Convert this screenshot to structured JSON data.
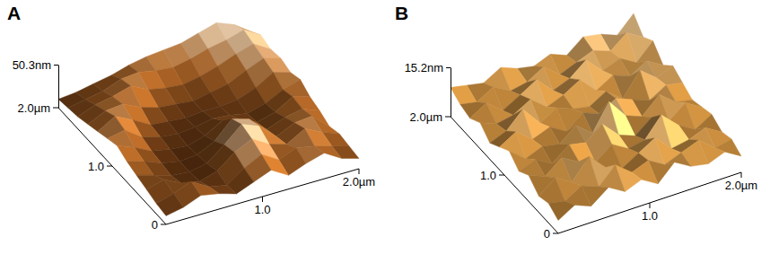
{
  "chart_data": [
    {
      "type": "surface",
      "title": "A",
      "x": [
        0,
        0.18,
        0.36,
        0.55,
        0.73,
        0.91,
        1.09,
        1.27,
        1.45,
        1.64,
        1.82,
        2
      ],
      "y": [
        0,
        0.18,
        0.36,
        0.55,
        0.73,
        0.91,
        1.09,
        1.27,
        1.45,
        1.64,
        1.82,
        2
      ],
      "z": [
        [
          10,
          14,
          22,
          18,
          12,
          20,
          28,
          16,
          24,
          30,
          18,
          12
        ],
        [
          12,
          18,
          26,
          14,
          10,
          24,
          34,
          22,
          30,
          26,
          20,
          14
        ],
        [
          16,
          22,
          12,
          8,
          14,
          30,
          40,
          28,
          22,
          34,
          24,
          16
        ],
        [
          20,
          14,
          8,
          6,
          10,
          26,
          44,
          36,
          18,
          28,
          30,
          12
        ],
        [
          24,
          18,
          10,
          6,
          8,
          18,
          38,
          32,
          14,
          22,
          26,
          18
        ],
        [
          30,
          22,
          12,
          8,
          6,
          12,
          24,
          20,
          10,
          16,
          28,
          22
        ],
        [
          26,
          30,
          16,
          10,
          8,
          10,
          14,
          12,
          8,
          14,
          24,
          30
        ],
        [
          22,
          34,
          24,
          12,
          10,
          8,
          10,
          10,
          12,
          20,
          32,
          26
        ],
        [
          18,
          28,
          30,
          20,
          14,
          12,
          10,
          14,
          18,
          28,
          36,
          30
        ],
        [
          14,
          22,
          26,
          32,
          22,
          18,
          16,
          20,
          26,
          34,
          40,
          28
        ],
        [
          12,
          16,
          20,
          28,
          30,
          26,
          24,
          28,
          34,
          38,
          44,
          32
        ],
        [
          10,
          12,
          16,
          20,
          26,
          30,
          32,
          34,
          40,
          46,
          38,
          24
        ]
      ],
      "xlim": [
        0,
        2
      ],
      "ylim": [
        0,
        2
      ],
      "zlim": [
        0,
        50.3
      ],
      "xticks": [
        {
          "value": 1,
          "label": "1.0"
        },
        {
          "value": 2,
          "label": "2.0µm"
        }
      ],
      "yticks": [
        0,
        {
          "value": 1,
          "label": "1.0"
        },
        {
          "value": 2,
          "label": "2.0µm"
        }
      ],
      "zticks": [
        {
          "value": 50.3,
          "label": "50.3nm"
        }
      ]
    },
    {
      "type": "surface",
      "title": "B",
      "x": [
        0,
        0.18,
        0.36,
        0.55,
        0.73,
        0.91,
        1.09,
        1.27,
        1.45,
        1.64,
        1.82,
        2
      ],
      "y": [
        0,
        0.18,
        0.36,
        0.55,
        0.73,
        0.91,
        1.09,
        1.27,
        1.45,
        1.64,
        1.82,
        2
      ],
      "z": [
        [
          4,
          7,
          5,
          9,
          6,
          8,
          5,
          10,
          7,
          6,
          8,
          5
        ],
        [
          6,
          5,
          8,
          6,
          11,
          7,
          9,
          6,
          8,
          10,
          6,
          7
        ],
        [
          5,
          9,
          6,
          12,
          7,
          5,
          8,
          11,
          6,
          7,
          9,
          6
        ],
        [
          8,
          6,
          10,
          7,
          5,
          9,
          6,
          7,
          13,
          8,
          5,
          8
        ],
        [
          6,
          8,
          5,
          9,
          8,
          12,
          7,
          5,
          9,
          6,
          10,
          7
        ],
        [
          9,
          5,
          7,
          6,
          10,
          6,
          14,
          8,
          6,
          11,
          7,
          6
        ],
        [
          7,
          10,
          6,
          8,
          5,
          9,
          7,
          10,
          8,
          6,
          9,
          8
        ],
        [
          5,
          7,
          12,
          6,
          9,
          7,
          6,
          9,
          5,
          12,
          8,
          10
        ],
        [
          8,
          6,
          7,
          10,
          6,
          8,
          11,
          6,
          9,
          7,
          10,
          7
        ],
        [
          6,
          9,
          5,
          8,
          11,
          6,
          8,
          12,
          7,
          9,
          6,
          11
        ],
        [
          7,
          6,
          9,
          6,
          7,
          10,
          6,
          8,
          10,
          8,
          12,
          9
        ],
        [
          9,
          8,
          7,
          10,
          8,
          7,
          9,
          7,
          11,
          10,
          8,
          13
        ]
      ],
      "xlim": [
        0,
        2
      ],
      "ylim": [
        0,
        2
      ],
      "zlim": [
        0,
        15.2
      ],
      "xticks": [
        {
          "value": 1,
          "label": "1.0"
        },
        {
          "value": 2,
          "label": "2.0µm"
        }
      ],
      "yticks": [
        0,
        {
          "value": 1,
          "label": "1.0"
        },
        {
          "value": 2,
          "label": "2.0µm"
        }
      ],
      "zticks": [
        {
          "value": 15.2,
          "label": "15.2nm"
        }
      ]
    }
  ]
}
